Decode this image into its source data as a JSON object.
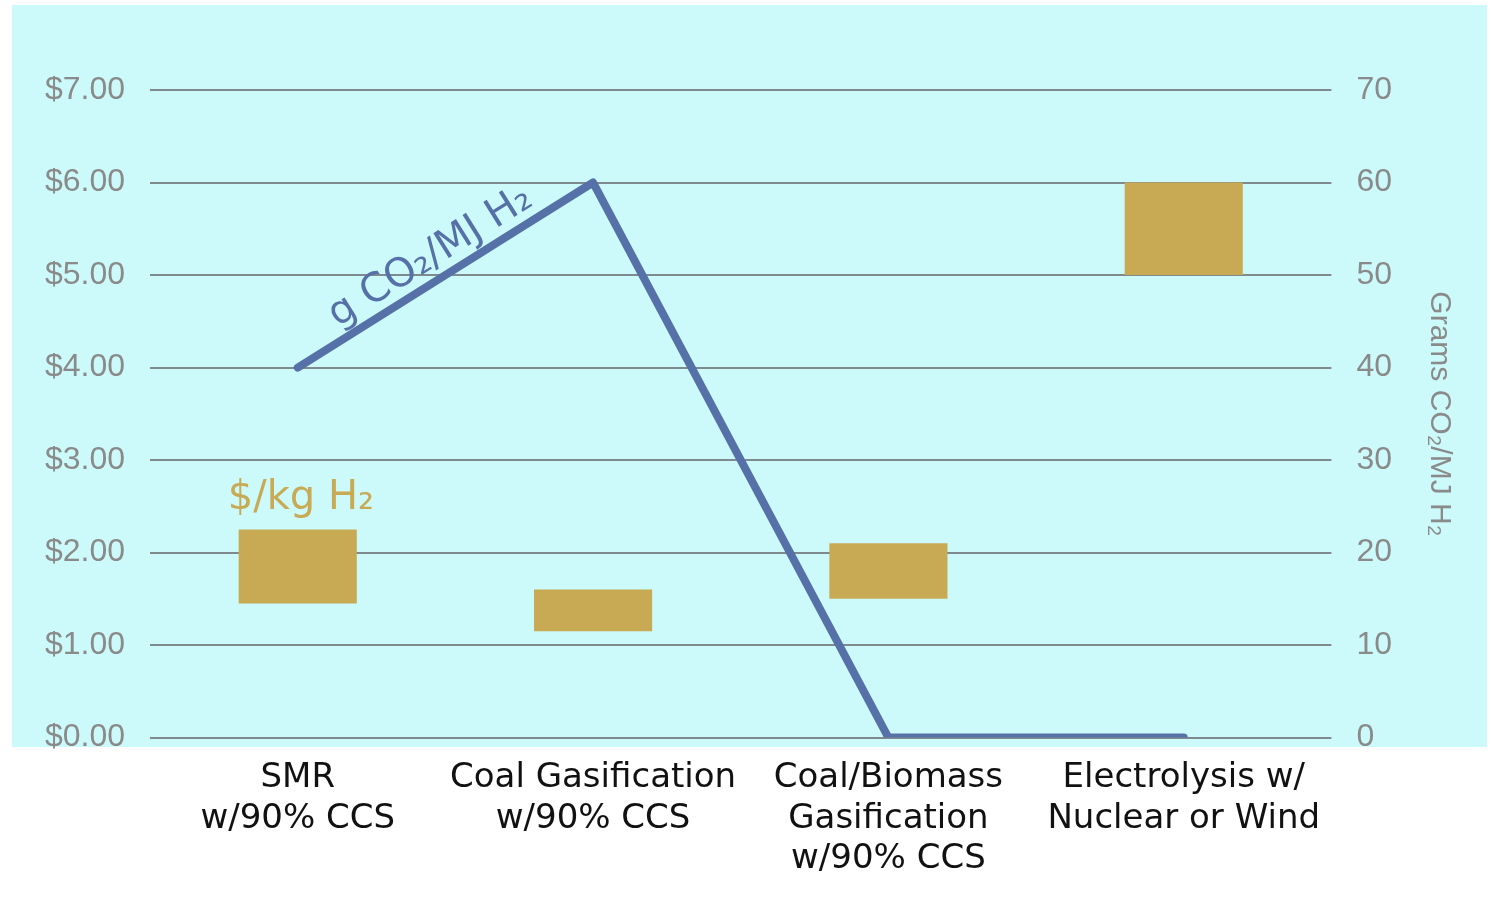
{
  "chart_data": {
    "type": "bar",
    "categories": [
      "SMR\nw/90% CCS",
      "Coal Gasification\nw/90% CCS",
      "Coal/Biomass\nGasification\nw/90% CCS",
      "Electrolysis w/\nNuclear or Wind"
    ],
    "series": [
      {
        "name": "$/kg H₂",
        "color": "#c8aa55",
        "base": [
          1.45,
          1.15,
          1.5,
          5.0
        ],
        "values": [
          0.8,
          0.45,
          0.6,
          1.0
        ]
      },
      {
        "name": "g CO₂/MJ H₂",
        "type": "line",
        "axis": "y2",
        "color": "#5670a8",
        "values": [
          40,
          60,
          0,
          0
        ]
      }
    ],
    "ylim": [
      0,
      7
    ],
    "yticks": [
      {
        "value": 0,
        "label": "$0.00"
      },
      {
        "value": 1,
        "label": "$1.00"
      },
      {
        "value": 2,
        "label": "$2.00"
      },
      {
        "value": 3,
        "label": "$3.00"
      },
      {
        "value": 4,
        "label": "$4.00"
      },
      {
        "value": 5,
        "label": "$5.00"
      },
      {
        "value": 6,
        "label": "$6.00"
      },
      {
        "value": 7,
        "label": "$7.00"
      }
    ],
    "y2lim": [
      0,
      70
    ],
    "y2ticks": [
      0,
      10,
      20,
      30,
      40,
      50,
      60,
      70
    ],
    "y2label": "Grams CO₂/MJ H₂",
    "grid": "y",
    "legend": false,
    "marker": "none"
  }
}
